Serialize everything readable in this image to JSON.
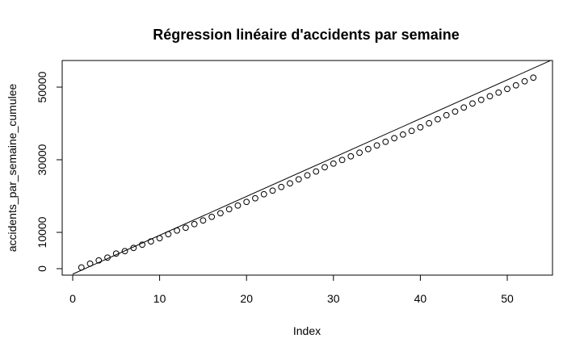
{
  "chart_data": {
    "type": "scatter",
    "title": "Régression linéaire d'accidents par semaine",
    "xlabel": "Index",
    "ylabel": "accidents_par_semaine_cumulee",
    "xlim": [
      0,
      55
    ],
    "ylim": [
      0,
      57000
    ],
    "x_ticks": [
      0,
      10,
      20,
      30,
      40,
      50
    ],
    "y_ticks": [
      0,
      10000,
      30000,
      50000
    ],
    "series": [
      {
        "x": [
          1,
          2,
          3,
          4,
          5,
          6,
          7,
          8,
          9,
          10,
          11,
          12,
          13,
          14,
          15,
          16,
          17,
          18,
          19,
          20,
          21,
          22,
          23,
          24,
          25,
          26,
          27,
          28,
          29,
          30,
          31,
          32,
          33,
          34,
          35,
          36,
          37,
          38,
          39,
          40,
          41,
          42,
          43,
          44,
          45,
          46,
          47,
          48,
          49,
          50,
          51,
          52,
          53
        ],
        "y": [
          333,
          1389,
          2278,
          3056,
          4167,
          4833,
          5722,
          6611,
          7500,
          8389,
          9500,
          10500,
          11278,
          12278,
          13278,
          14278,
          15278,
          16389,
          17389,
          18389,
          19389,
          20500,
          21500,
          22500,
          23500,
          24611,
          25722,
          26778,
          27944,
          28944,
          29944,
          30944,
          31944,
          32944,
          33944,
          34944,
          35944,
          36944,
          37944,
          38944,
          40056,
          41167,
          42278,
          43278,
          44389,
          45500,
          46500,
          47500,
          48500,
          49500,
          50500,
          51611,
          52611
        ]
      }
    ],
    "regression": {
      "intercept": -1500,
      "slope": 1070
    }
  }
}
